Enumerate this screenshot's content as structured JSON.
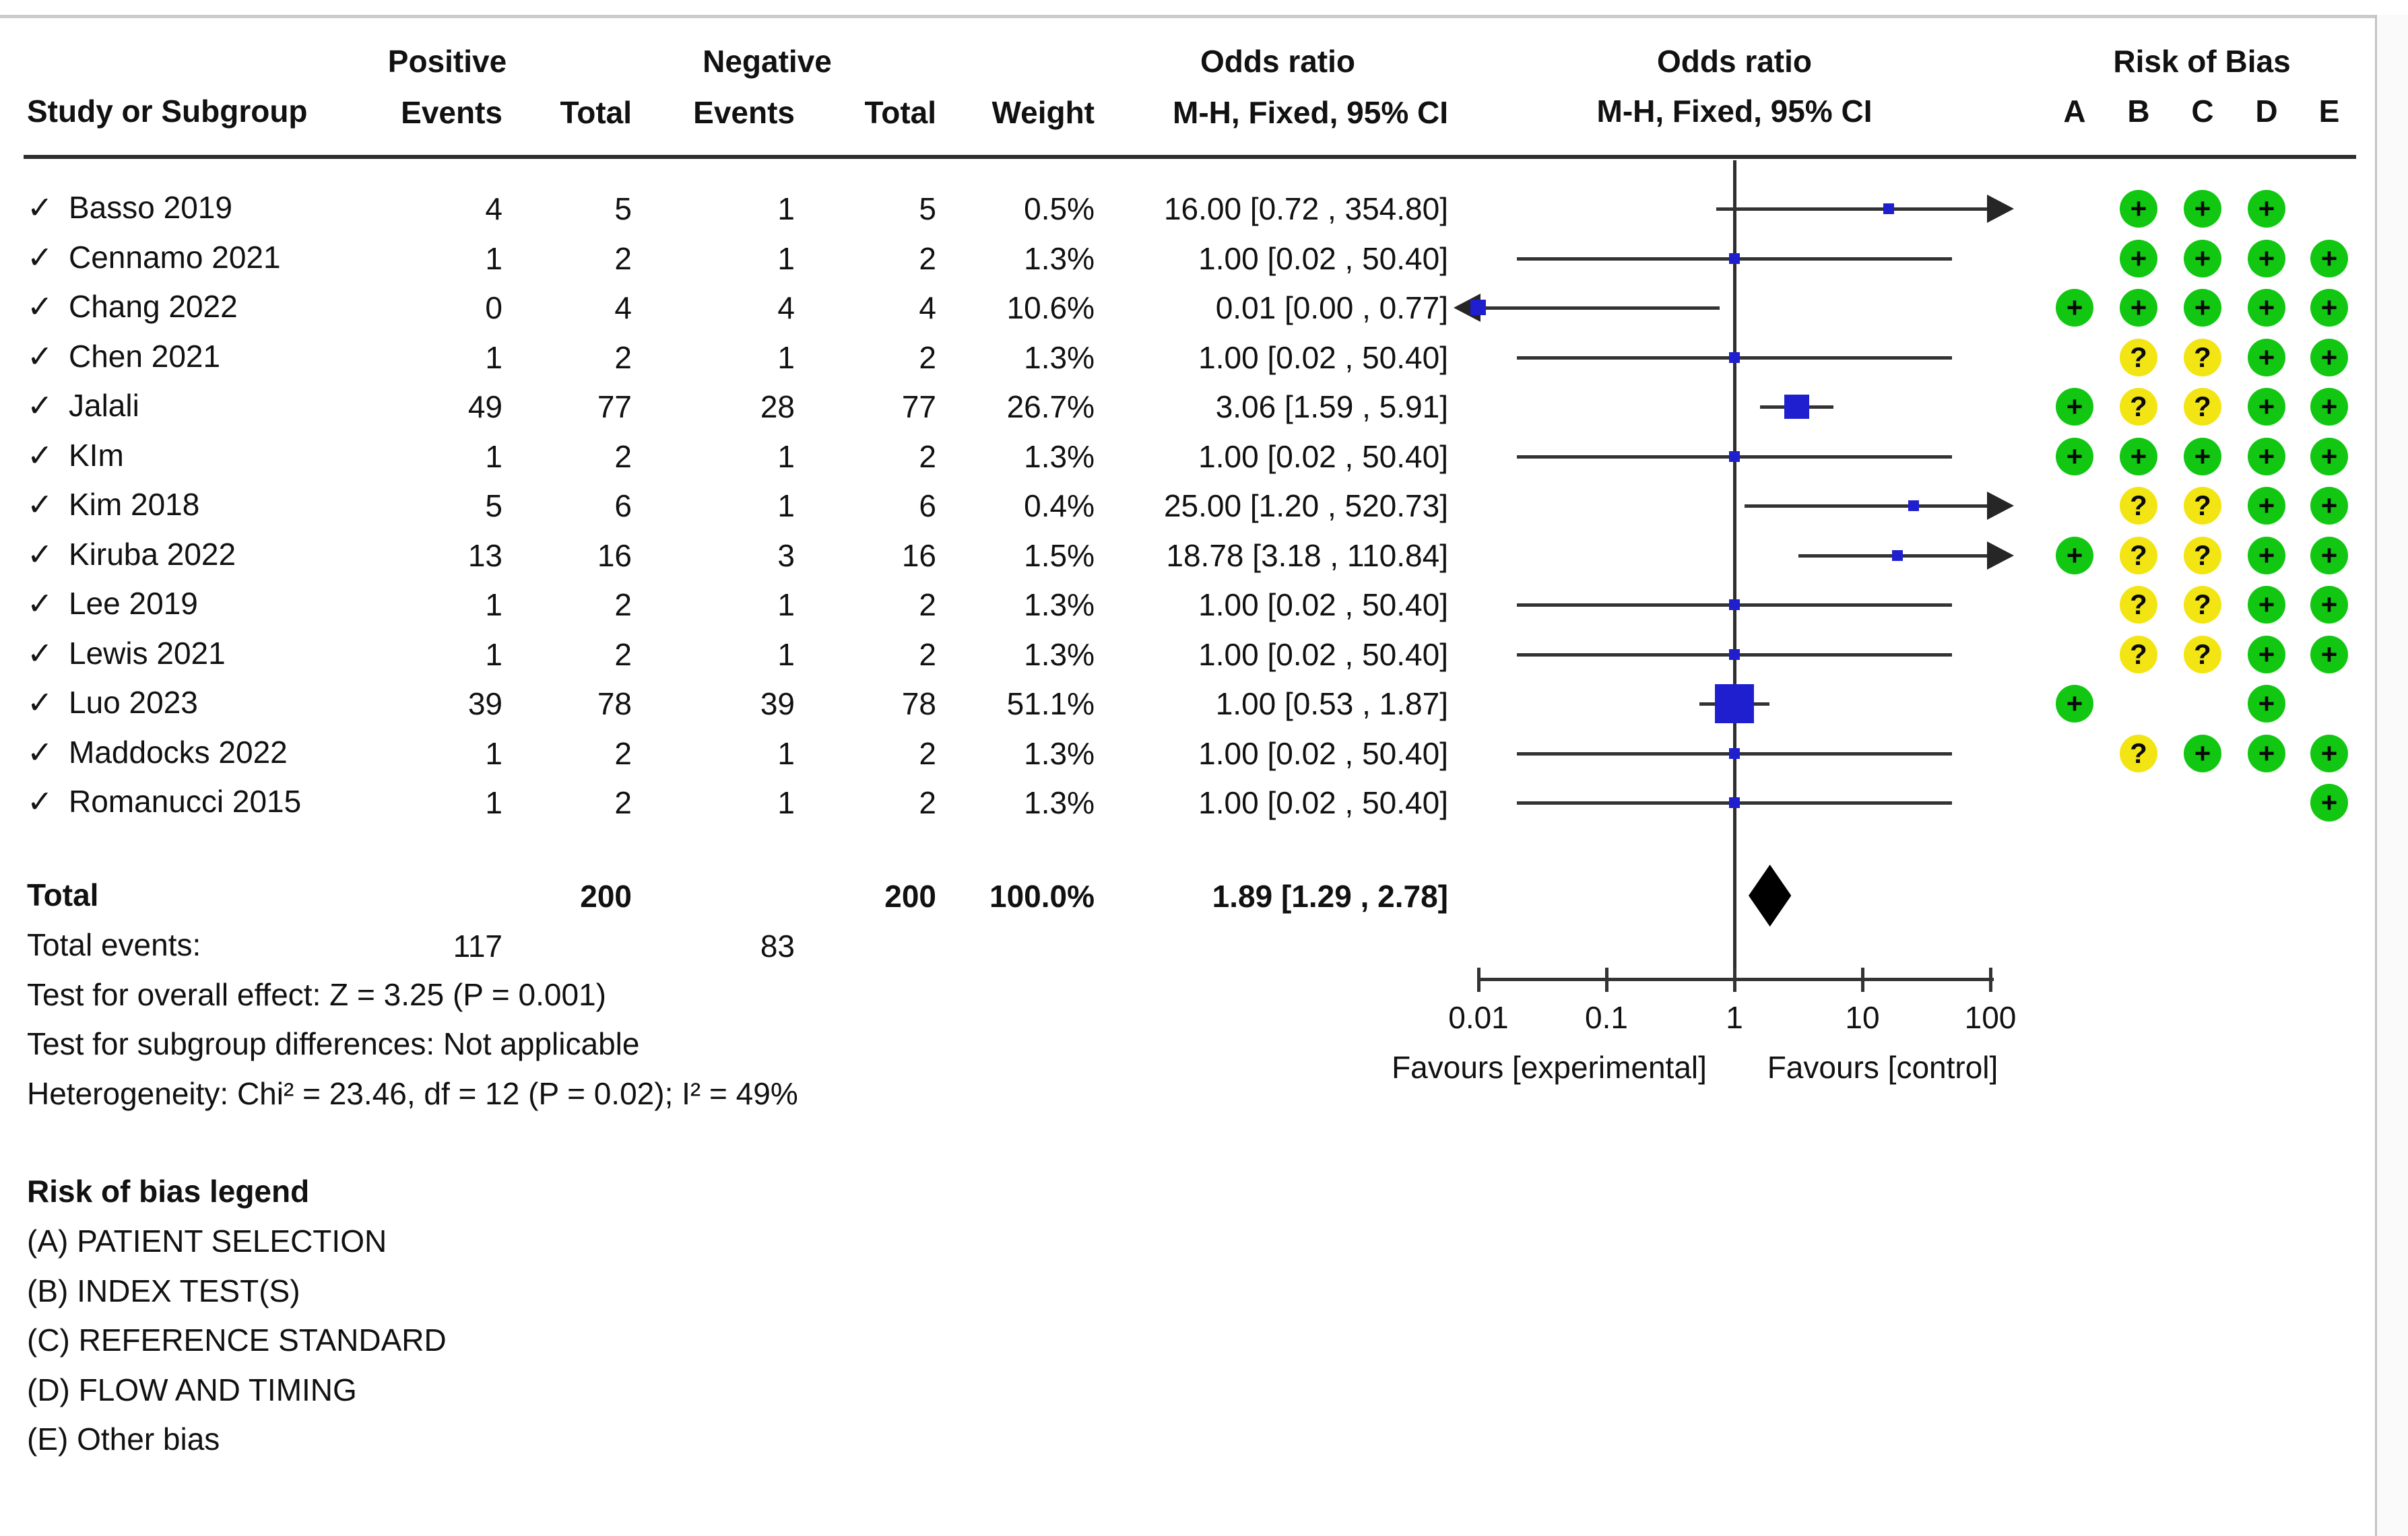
{
  "header": {
    "group_positive": "Positive",
    "group_negative": "Negative",
    "group_or_stat": "Odds ratio",
    "group_or_plot": "Odds ratio",
    "group_rob": "Risk of Bias",
    "study": "Study or Subgroup",
    "pos_events": "Events",
    "pos_total": "Total",
    "neg_events": "Events",
    "neg_total": "Total",
    "weight": "Weight",
    "mh_ci_stat": "M-H, Fixed, 95% CI",
    "mh_ci_plot": "M-H, Fixed, 95% CI",
    "rob_letters": [
      "A",
      "B",
      "C",
      "D",
      "E"
    ]
  },
  "check_glyph": "✓",
  "studies": [
    {
      "name": "Basso 2019",
      "pos_events": "4",
      "pos_total": "5",
      "neg_events": "1",
      "neg_total": "5",
      "weight": "0.5%",
      "or_text": "16.00 [0.72 , 354.80]",
      "rob": [
        "",
        "+",
        "+",
        "+",
        ""
      ]
    },
    {
      "name": "Cennamo 2021",
      "pos_events": "1",
      "pos_total": "2",
      "neg_events": "1",
      "neg_total": "2",
      "weight": "1.3%",
      "or_text": "1.00 [0.02 , 50.40]",
      "rob": [
        "",
        "+",
        "+",
        "+",
        "+"
      ]
    },
    {
      "name": "Chang 2022",
      "pos_events": "0",
      "pos_total": "4",
      "neg_events": "4",
      "neg_total": "4",
      "weight": "10.6%",
      "or_text": "0.01 [0.00 , 0.77]",
      "rob": [
        "+",
        "+",
        "+",
        "+",
        "+"
      ]
    },
    {
      "name": "Chen 2021",
      "pos_events": "1",
      "pos_total": "2",
      "neg_events": "1",
      "neg_total": "2",
      "weight": "1.3%",
      "or_text": "1.00 [0.02 , 50.40]",
      "rob": [
        "",
        "?",
        "?",
        "+",
        "+"
      ]
    },
    {
      "name": "Jalali",
      "pos_events": "49",
      "pos_total": "77",
      "neg_events": "28",
      "neg_total": "77",
      "weight": "26.7%",
      "or_text": "3.06 [1.59 , 5.91]",
      "rob": [
        "+",
        "?",
        "?",
        "+",
        "+"
      ]
    },
    {
      "name": "KIm",
      "pos_events": "1",
      "pos_total": "2",
      "neg_events": "1",
      "neg_total": "2",
      "weight": "1.3%",
      "or_text": "1.00 [0.02 , 50.40]",
      "rob": [
        "+",
        "+",
        "+",
        "+",
        "+"
      ]
    },
    {
      "name": "Kim 2018",
      "pos_events": "5",
      "pos_total": "6",
      "neg_events": "1",
      "neg_total": "6",
      "weight": "0.4%",
      "or_text": "25.00 [1.20 , 520.73]",
      "rob": [
        "",
        "?",
        "?",
        "+",
        "+"
      ]
    },
    {
      "name": "Kiruba 2022",
      "pos_events": "13",
      "pos_total": "16",
      "neg_events": "3",
      "neg_total": "16",
      "weight": "1.5%",
      "or_text": "18.78 [3.18 , 110.84]",
      "rob": [
        "+",
        "?",
        "?",
        "+",
        "+"
      ]
    },
    {
      "name": "Lee 2019",
      "pos_events": "1",
      "pos_total": "2",
      "neg_events": "1",
      "neg_total": "2",
      "weight": "1.3%",
      "or_text": "1.00 [0.02 , 50.40]",
      "rob": [
        "",
        "?",
        "?",
        "+",
        "+"
      ]
    },
    {
      "name": "Lewis 2021",
      "pos_events": "1",
      "pos_total": "2",
      "neg_events": "1",
      "neg_total": "2",
      "weight": "1.3%",
      "or_text": "1.00 [0.02 , 50.40]",
      "rob": [
        "",
        "?",
        "?",
        "+",
        "+"
      ]
    },
    {
      "name": "Luo 2023",
      "pos_events": "39",
      "pos_total": "78",
      "neg_events": "39",
      "neg_total": "78",
      "weight": "51.1%",
      "or_text": "1.00 [0.53 , 1.87]",
      "rob": [
        "+",
        "",
        "",
        "+",
        ""
      ]
    },
    {
      "name": "Maddocks 2022",
      "pos_events": "1",
      "pos_total": "2",
      "neg_events": "1",
      "neg_total": "2",
      "weight": "1.3%",
      "or_text": "1.00 [0.02 , 50.40]",
      "rob": [
        "",
        "?",
        "+",
        "+",
        "+"
      ]
    },
    {
      "name": "Romanucci 2015",
      "pos_events": "1",
      "pos_total": "2",
      "neg_events": "1",
      "neg_total": "2",
      "weight": "1.3%",
      "or_text": "1.00 [0.02 , 50.40]",
      "rob": [
        "",
        "",
        "",
        "",
        "+"
      ]
    }
  ],
  "totals": {
    "label": "Total",
    "pos_total": "200",
    "neg_total": "200",
    "weight": "100.0%",
    "or_text": "1.89 [1.29 , 2.78]"
  },
  "summary": {
    "total_events_label": "Total events:",
    "total_events_pos": "117",
    "total_events_neg": "83",
    "overall_effect": "Test for overall effect: Z = 3.25 (P = 0.001)",
    "subgroup_differences": "Test for subgroup differences: Not applicable",
    "heterogeneity": "Heterogeneity: Chi² = 23.46, df = 12 (P = 0.02); I² = 49%"
  },
  "axis": {
    "tick_labels": [
      "0.01",
      "0.1",
      "1",
      "10",
      "100"
    ],
    "favours_left": "Favours [experimental]",
    "favours_right": "Favours [control]"
  },
  "rob_legend": {
    "title": "Risk of bias legend",
    "items": [
      "(A) PATIENT SELECTION",
      "(B) INDEX TEST(S)",
      "(C) REFERENCE STANDARD",
      "(D) FLOW AND TIMING",
      "(E) Other bias"
    ]
  },
  "colors": {
    "rob_low": "#12c712",
    "rob_unclear": "#f2e513",
    "marker_blue": "#1f1fd0",
    "diamond_black": "#000000",
    "line_dark": "#333333"
  },
  "chart_data": {
    "type": "scatter",
    "subtype": "forest-plot-odds-ratio",
    "x_scale": "log10",
    "x_ticks": [
      0.01,
      0.1,
      1,
      10,
      100
    ],
    "xlim": [
      0.01,
      100
    ],
    "effect_measure": "M-H, Fixed, 95% CI",
    "studies": [
      {
        "name": "Basso 2019",
        "or": 16.0,
        "ci_low": 0.72,
        "ci_high": 354.8,
        "weight_pct": 0.5
      },
      {
        "name": "Cennamo 2021",
        "or": 1.0,
        "ci_low": 0.02,
        "ci_high": 50.4,
        "weight_pct": 1.3
      },
      {
        "name": "Chang 2022",
        "or": 0.01,
        "ci_low": 0.0,
        "ci_high": 0.77,
        "weight_pct": 10.6
      },
      {
        "name": "Chen 2021",
        "or": 1.0,
        "ci_low": 0.02,
        "ci_high": 50.4,
        "weight_pct": 1.3
      },
      {
        "name": "Jalali",
        "or": 3.06,
        "ci_low": 1.59,
        "ci_high": 5.91,
        "weight_pct": 26.7
      },
      {
        "name": "KIm",
        "or": 1.0,
        "ci_low": 0.02,
        "ci_high": 50.4,
        "weight_pct": 1.3
      },
      {
        "name": "Kim 2018",
        "or": 25.0,
        "ci_low": 1.2,
        "ci_high": 520.73,
        "weight_pct": 0.4
      },
      {
        "name": "Kiruba 2022",
        "or": 18.78,
        "ci_low": 3.18,
        "ci_high": 110.84,
        "weight_pct": 1.5
      },
      {
        "name": "Lee 2019",
        "or": 1.0,
        "ci_low": 0.02,
        "ci_high": 50.4,
        "weight_pct": 1.3
      },
      {
        "name": "Lewis 2021",
        "or": 1.0,
        "ci_low": 0.02,
        "ci_high": 50.4,
        "weight_pct": 1.3
      },
      {
        "name": "Luo 2023",
        "or": 1.0,
        "ci_low": 0.53,
        "ci_high": 1.87,
        "weight_pct": 51.1
      },
      {
        "name": "Maddocks 2022",
        "or": 1.0,
        "ci_low": 0.02,
        "ci_high": 50.4,
        "weight_pct": 1.3
      },
      {
        "name": "Romanucci 2015",
        "or": 1.0,
        "ci_low": 0.02,
        "ci_high": 50.4,
        "weight_pct": 1.3
      }
    ],
    "total": {
      "or": 1.89,
      "ci_low": 1.29,
      "ci_high": 2.78,
      "weight_pct": 100.0
    }
  }
}
